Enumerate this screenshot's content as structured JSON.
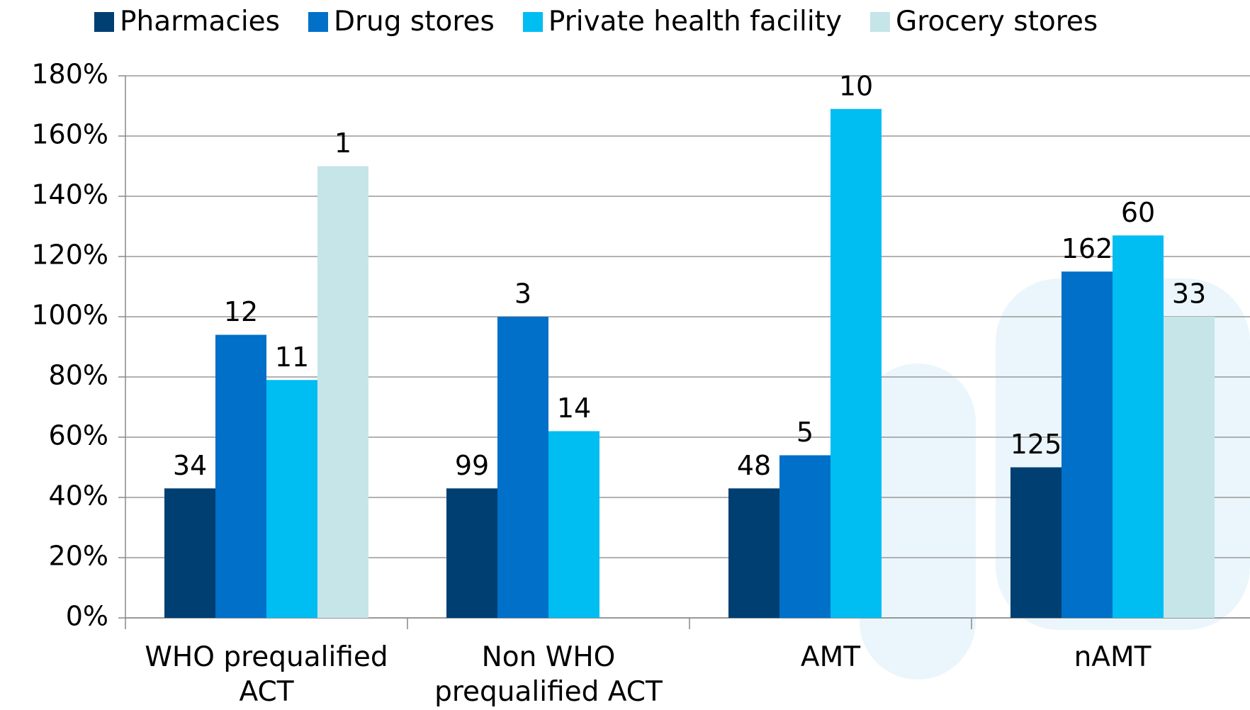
{
  "chart_data": {
    "type": "bar",
    "categories": [
      "WHO prequalified ACT",
      "Non WHO prequalified ACT",
      "AMT",
      "nAMT"
    ],
    "series": [
      {
        "name": "Pharmacies",
        "color": "#003f72",
        "values": [
          43,
          43,
          43,
          50
        ],
        "bar_labels": [
          34,
          99,
          48,
          125
        ]
      },
      {
        "name": "Drug stores",
        "color": "#0070c8",
        "values": [
          94,
          100,
          54,
          115
        ],
        "bar_labels": [
          12,
          3,
          5,
          162
        ]
      },
      {
        "name": "Private health facility",
        "color": "#00bdf2",
        "values": [
          79,
          62,
          169,
          127
        ],
        "bar_labels": [
          11,
          14,
          10,
          60
        ]
      },
      {
        "name": "Grocery stores",
        "color": "#c5e5e8",
        "values": [
          150,
          null,
          null,
          100
        ],
        "bar_labels": [
          1,
          null,
          null,
          33
        ]
      }
    ],
    "ylim": [
      0,
      180
    ],
    "yticks": [
      {
        "value": 0,
        "label": "0%"
      },
      {
        "value": 20,
        "label": "20%"
      },
      {
        "value": 40,
        "label": "40%"
      },
      {
        "value": 60,
        "label": "60%"
      },
      {
        "value": 80,
        "label": "80%"
      },
      {
        "value": 100,
        "label": "100%"
      },
      {
        "value": 120,
        "label": "120%"
      },
      {
        "value": 140,
        "label": "140%"
      },
      {
        "value": 160,
        "label": "160%"
      },
      {
        "value": 180,
        "label": "180%"
      }
    ],
    "grid": true
  }
}
